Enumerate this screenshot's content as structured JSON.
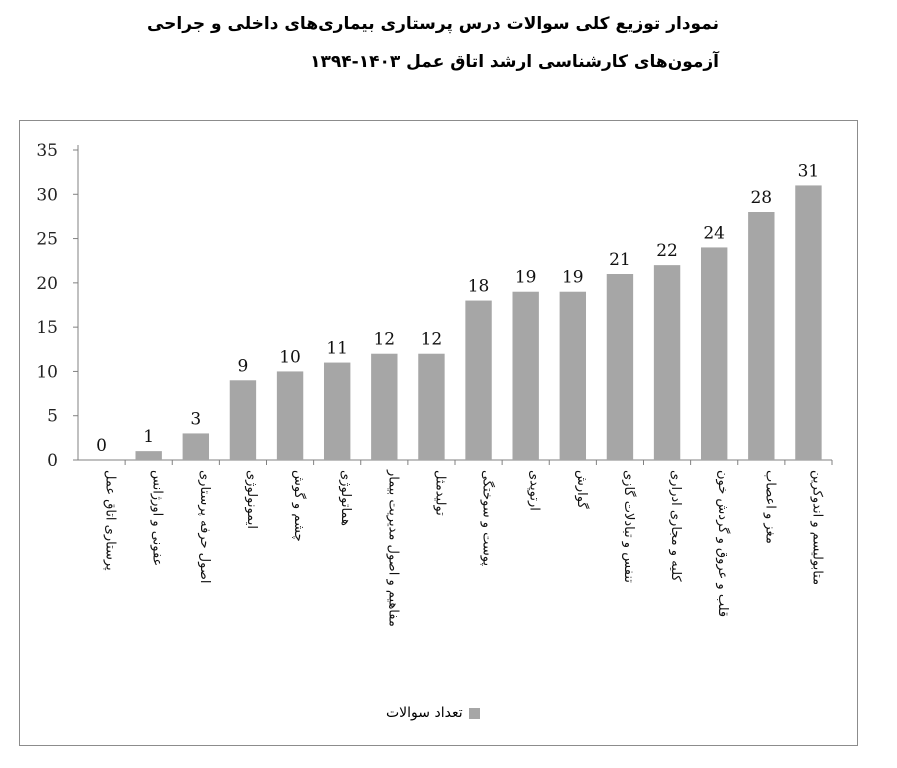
{
  "header": {
    "title_line1": "نمودار توزیع کلی سوالات درس پرستاری بیماری‌های داخلی و جراحی",
    "title_line2": "آزمون‌های کارشناسی ارشد اتاق عمل ۱۴۰۳-۱۳۹۴"
  },
  "chart_data": {
    "type": "bar",
    "categories": [
      "پرستاری اتاق عمل",
      "عفونی و اورژانس",
      "اصول حرفه پرستاری",
      "ایمونولوژی",
      "چشم و گوش",
      "هماتولوژی",
      "مفاهیم و اصول مدیریت بیمار",
      "تولیدمثل",
      "پوست و سوختگی",
      "ارتوپدی",
      "گوارش",
      "تنفس و تبادلات گازی",
      "کلیه و مجاری ادراری",
      "قلب و عروق و گردش خون",
      "مغز و اعصاب",
      "متابولیسم و اندوکرین"
    ],
    "series": [
      {
        "name": "تعداد سوالات",
        "values": [
          0,
          1,
          3,
          9,
          10,
          11,
          12,
          12,
          18,
          19,
          19,
          21,
          22,
          24,
          28,
          31
        ]
      }
    ],
    "ylim": [
      0,
      35
    ],
    "yticks": [
      "0",
      "5",
      "10",
      "15",
      "20",
      "25",
      "30",
      "35"
    ],
    "bar_color": "#a6a6a6",
    "grid": false,
    "legend_position": "bottom"
  }
}
